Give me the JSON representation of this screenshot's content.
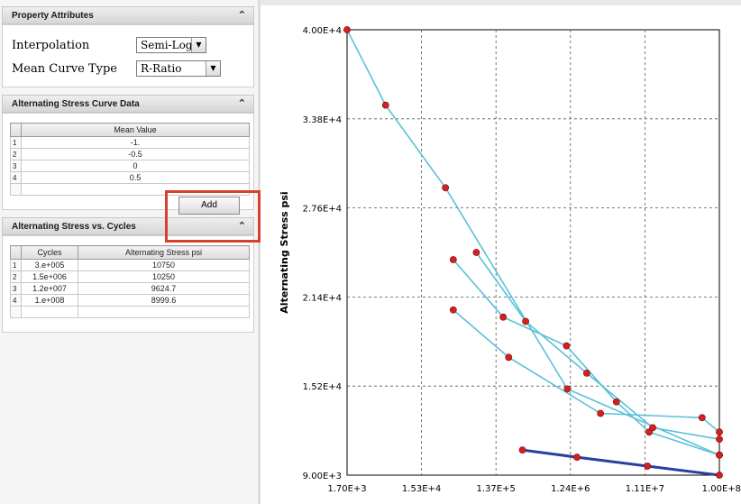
{
  "property_attributes": {
    "title": "Property Attributes",
    "interpolation_label": "Interpolation",
    "interpolation_value": "Semi-Log",
    "mean_curve_label": "Mean Curve Type",
    "mean_curve_value": "R-Ratio"
  },
  "curve_data": {
    "title": "Alternating Stress Curve Data",
    "column": "Mean Value",
    "rows": [
      {
        "idx": "1",
        "value": "-1."
      },
      {
        "idx": "2",
        "value": "-0.5"
      },
      {
        "idx": "3",
        "value": "0"
      },
      {
        "idx": "4",
        "value": "0.5"
      }
    ],
    "add_label": "Add"
  },
  "stress_cycles": {
    "title": "Alternating Stress vs. Cycles",
    "columns": [
      "Cycles",
      "Alternating Stress psi"
    ],
    "rows": [
      {
        "idx": "1",
        "cycles": "3.e+005",
        "stress": "10750"
      },
      {
        "idx": "2",
        "cycles": "1.5e+006",
        "stress": "10250"
      },
      {
        "idx": "3",
        "cycles": "1.2e+007",
        "stress": "9624.7"
      },
      {
        "idx": "4",
        "cycles": "1.e+008",
        "stress": "8999.6"
      }
    ]
  },
  "colors": {
    "light_series": "#5bc0d8",
    "dark_series": "#2a3f9e",
    "marker": "#d42020",
    "highlight": "#d9402b"
  },
  "icons": {
    "collapse": "double-chevron-up-icon",
    "dropdown": "triangle-down-icon"
  },
  "chart_data": {
    "type": "line",
    "ylabel": "Alternating Stress psi",
    "xlabel": "",
    "x_scale": "log",
    "xlim": [
      1700,
      100000000
    ],
    "ylim": [
      9000,
      40000
    ],
    "x_ticks": [
      "1.70E+3",
      "1.53E+4",
      "1.37E+5",
      "1.24E+6",
      "1.11E+7",
      "1.00E+8"
    ],
    "y_ticks": [
      "4.00E+4",
      "3.38E+4",
      "2.76E+4",
      "2.14E+4",
      "1.52E+4",
      "9.00E+3"
    ],
    "grid": true,
    "series": [
      {
        "color": "light",
        "x": [
          1700,
          5300,
          31000,
          1130000,
          100000000
        ],
        "y": [
          40000,
          34750,
          29000,
          15000,
          10400
        ]
      },
      {
        "color": "light",
        "x": [
          39000,
          170000,
          1100000,
          4800000,
          12600000,
          100000000
        ],
        "y": [
          24000,
          20000,
          18000,
          14100,
          12000,
          10400
        ]
      },
      {
        "color": "light",
        "x": [
          77000,
          330000,
          2000000,
          14000000,
          100000000
        ],
        "y": [
          24500,
          19700,
          16100,
          12300,
          11500
        ]
      },
      {
        "color": "light",
        "x": [
          39000,
          200000,
          3000000,
          60000000,
          100000000
        ],
        "y": [
          20500,
          17200,
          13300,
          13000,
          12000
        ]
      },
      {
        "color": "dark",
        "x": [
          300000,
          1500000,
          12000000,
          100000000
        ],
        "y": [
          10750,
          10250,
          9624.7,
          8999.6
        ]
      }
    ]
  }
}
